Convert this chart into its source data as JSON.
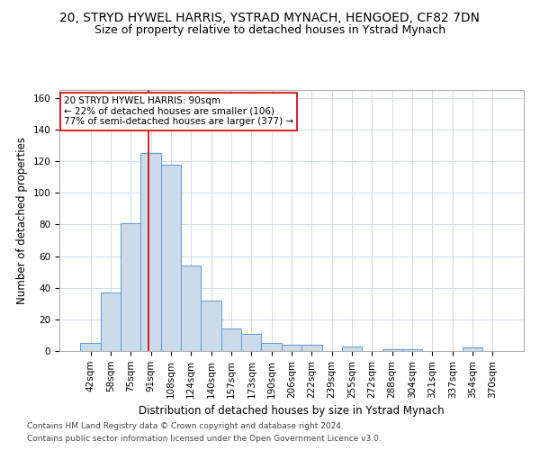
{
  "title": "20, STRYD HYWEL HARRIS, YSTRAD MYNACH, HENGOED, CF82 7DN",
  "subtitle": "Size of property relative to detached houses in Ystrad Mynach",
  "xlabel": "Distribution of detached houses by size in Ystrad Mynach",
  "ylabel": "Number of detached properties",
  "footer1": "Contains HM Land Registry data © Crown copyright and database right 2024.",
  "footer2": "Contains public sector information licensed under the Open Government Licence v3.0.",
  "bar_labels": [
    "42sqm",
    "58sqm",
    "75sqm",
    "91sqm",
    "108sqm",
    "124sqm",
    "140sqm",
    "157sqm",
    "173sqm",
    "190sqm",
    "206sqm",
    "222sqm",
    "239sqm",
    "255sqm",
    "272sqm",
    "288sqm",
    "304sqm",
    "321sqm",
    "337sqm",
    "354sqm",
    "370sqm"
  ],
  "bar_values": [
    5,
    37,
    81,
    125,
    118,
    54,
    32,
    14,
    11,
    5,
    4,
    4,
    0,
    3,
    0,
    1,
    1,
    0,
    0,
    2,
    0
  ],
  "bar_color": "#ccdaea",
  "bar_edge_color": "#5b9bd5",
  "grid_color": "#d0d8e8",
  "annotation_text": "20 STRYD HYWEL HARRIS: 90sqm\n← 22% of detached houses are smaller (106)\n77% of semi-detached houses are larger (377) →",
  "vline_x": 2.88,
  "annotation_box_color": "#ffffff",
  "annotation_box_edge": "#cc0000",
  "title_fontsize": 10,
  "subtitle_fontsize": 9,
  "xlabel_fontsize": 8.5,
  "ylabel_fontsize": 8.5,
  "tick_fontsize": 7.5,
  "annotation_fontsize": 7.5,
  "footer_fontsize": 6.5,
  "ylim": [
    0,
    165
  ],
  "yticks": [
    0,
    20,
    40,
    60,
    80,
    100,
    120,
    140,
    160
  ]
}
